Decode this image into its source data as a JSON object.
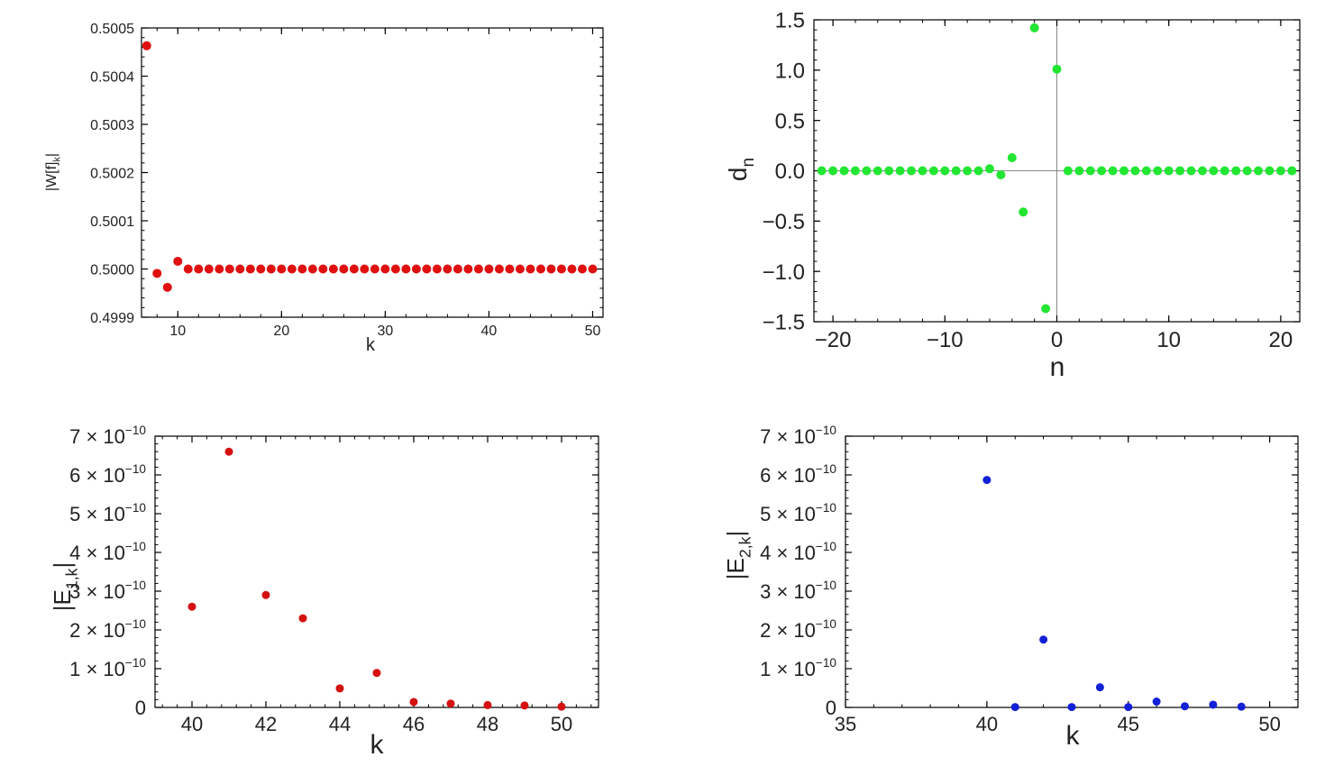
{
  "chart_data": [
    {
      "type": "scatter",
      "xlabel": "k",
      "ylabel": "|W[f]_k|",
      "ylabel_main": "|W[f]",
      "ylabel_sub": "k",
      "ylabel_end": "|",
      "xlim": [
        6.5,
        51
      ],
      "ylim": [
        0.4999,
        0.5005
      ],
      "x_ticks": [
        10,
        20,
        30,
        40,
        50
      ],
      "x_tick_labels": [
        "10",
        "20",
        "30",
        "40",
        "50"
      ],
      "y_ticks": [
        0.4999,
        0.5,
        0.5001,
        0.5002,
        0.5003,
        0.5004,
        0.5005
      ],
      "y_tick_labels": [
        "0.4999",
        "0.5000",
        "0.5001",
        "0.5002",
        "0.5003",
        "0.5004",
        "0.5005"
      ],
      "color": "#e01010",
      "series": [
        {
          "x": [
            7,
            8,
            9,
            10,
            11,
            12,
            13,
            14,
            15,
            16,
            17,
            18,
            19,
            20,
            21,
            22,
            23,
            24,
            25,
            26,
            27,
            28,
            29,
            30,
            31,
            32,
            33,
            34,
            35,
            36,
            37,
            38,
            39,
            40,
            41,
            42,
            43,
            44,
            45,
            46,
            47,
            48,
            49,
            50
          ],
          "y": [
            0.500463,
            0.499991,
            0.499962,
            0.500016,
            0.5,
            0.5,
            0.5,
            0.5,
            0.5,
            0.5,
            0.5,
            0.5,
            0.5,
            0.5,
            0.5,
            0.5,
            0.5,
            0.5,
            0.5,
            0.5,
            0.5,
            0.5,
            0.5,
            0.5,
            0.5,
            0.5,
            0.5,
            0.5,
            0.5,
            0.5,
            0.5,
            0.5,
            0.5,
            0.5,
            0.5,
            0.5,
            0.5,
            0.5,
            0.5,
            0.5,
            0.5,
            0.5,
            0.5,
            0.5
          ]
        }
      ]
    },
    {
      "type": "scatter",
      "xlabel": "n",
      "ylabel": "d_n",
      "ylabel_main": "d",
      "ylabel_sub": "n",
      "xlim": [
        -21.7,
        21.7
      ],
      "ylim": [
        -1.5,
        1.5
      ],
      "x_ticks": [
        -20,
        -10,
        0,
        10,
        20
      ],
      "x_tick_labels": [
        "−20",
        "−10",
        "0",
        "10",
        "20"
      ],
      "y_ticks": [
        -1.5,
        -1.0,
        -0.5,
        0.0,
        0.5,
        1.0,
        1.5
      ],
      "y_tick_labels": [
        "−1.5",
        "−1.0",
        "−0.5",
        "0.0",
        "0.5",
        "1.0",
        "1.5"
      ],
      "axes_through_origin": true,
      "color": "#22e632",
      "series": [
        {
          "x": [
            -21,
            -20,
            -19,
            -18,
            -17,
            -16,
            -15,
            -14,
            -13,
            -12,
            -11,
            -10,
            -9,
            -8,
            -7,
            -6,
            -5,
            -4,
            -3,
            -2,
            -1,
            0,
            1,
            2,
            3,
            4,
            5,
            6,
            7,
            8,
            9,
            10,
            11,
            12,
            13,
            14,
            15,
            16,
            17,
            18,
            19,
            20,
            21
          ],
          "y": [
            0,
            0,
            0,
            0,
            0,
            0,
            0,
            0,
            0,
            0,
            0,
            0,
            0,
            0,
            0,
            0.02,
            -0.04,
            0.13,
            -0.41,
            1.42,
            -1.37,
            1.01,
            0,
            0,
            0,
            0,
            0,
            0,
            0,
            0,
            0,
            0,
            0,
            0,
            0,
            0,
            0,
            0,
            0,
            0,
            0,
            0,
            0
          ]
        }
      ]
    },
    {
      "type": "scatter",
      "xlabel": "k",
      "ylabel": "|E_{1,k}|",
      "ylabel_main": "|E",
      "ylabel_sub": "1,k",
      "ylabel_end": "|",
      "xlim": [
        39,
        51
      ],
      "ylim": [
        0,
        7e-10
      ],
      "x_ticks": [
        40,
        42,
        44,
        46,
        48,
        50
      ],
      "x_tick_labels": [
        "40",
        "42",
        "44",
        "46",
        "48",
        "50"
      ],
      "y_ticks": [
        0,
        1e-10,
        2e-10,
        3e-10,
        4e-10,
        5e-10,
        6e-10,
        7e-10
      ],
      "y_tick_labels": [
        "0",
        "1 × 10",
        "2 × 10",
        "3 × 10",
        "4 × 10",
        "5 × 10",
        "6 × 10",
        "7 × 10"
      ],
      "y_tick_exponent": "−10",
      "color": "#d41010",
      "series": [
        {
          "x": [
            40,
            41,
            42,
            43,
            44,
            45,
            46,
            47,
            48,
            49,
            50
          ],
          "y": [
            2.6e-10,
            6.6e-10,
            2.9e-10,
            2.3e-10,
            4.9e-11,
            8.9e-11,
            1.4e-11,
            1e-11,
            6e-12,
            5e-12,
            2e-12
          ]
        }
      ]
    },
    {
      "type": "scatter",
      "xlabel": "k",
      "ylabel": "|E_{2,k}|",
      "ylabel_main": "|E",
      "ylabel_sub": "2,k",
      "ylabel_end": "|",
      "xlim": [
        35,
        51
      ],
      "ylim": [
        0,
        7e-10
      ],
      "x_ticks": [
        35,
        40,
        45,
        50
      ],
      "x_tick_labels": [
        "35",
        "40",
        "45",
        "50"
      ],
      "y_ticks": [
        0,
        1e-10,
        2e-10,
        3e-10,
        4e-10,
        5e-10,
        6e-10,
        7e-10
      ],
      "y_tick_labels": [
        "0",
        "1 × 10",
        "2 × 10",
        "3 × 10",
        "4 × 10",
        "5 × 10",
        "6 × 10",
        "7 × 10"
      ],
      "y_tick_exponent": "−10",
      "color": "#1220d8",
      "series": [
        {
          "x": [
            40,
            41,
            42,
            43,
            44,
            45,
            46,
            47,
            48,
            49
          ],
          "y": [
            5.87e-10,
            1e-12,
            1.75e-10,
            1e-12,
            5.2e-11,
            1e-12,
            1.5e-11,
            3e-12,
            7e-12,
            2e-12
          ]
        }
      ]
    }
  ]
}
